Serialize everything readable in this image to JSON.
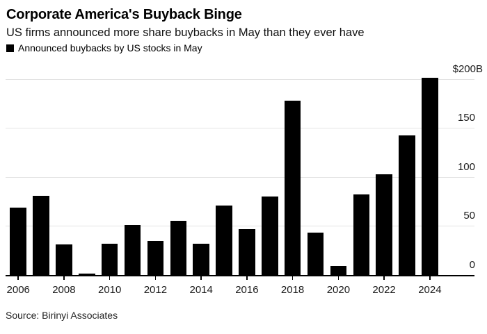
{
  "header": {
    "title": "Corporate America's Buyback Binge",
    "subtitle": "US firms announced more share buybacks in May than they ever have"
  },
  "legend": {
    "label": "Announced buybacks by US stocks in May",
    "swatch_color": "#000000"
  },
  "source": {
    "text": "Source: Birinyi Associates"
  },
  "chart_data": {
    "type": "bar",
    "title": "Announced buybacks by US stocks in May",
    "unit": "billions of US dollars",
    "categories": [
      2006,
      2007,
      2008,
      2009,
      2010,
      2011,
      2012,
      2013,
      2014,
      2015,
      2016,
      2017,
      2018,
      2019,
      2020,
      2021,
      2022,
      2023,
      2024
    ],
    "values": [
      69,
      81,
      31,
      1.5,
      32,
      51,
      35,
      55,
      32,
      71,
      47,
      80,
      178,
      43,
      9,
      82,
      103,
      142,
      201
    ],
    "xlabel": "",
    "ylabel": "",
    "ylim": [
      0,
      210
    ],
    "yticks": [
      {
        "value": 0,
        "label": "0"
      },
      {
        "value": 50,
        "label": "50"
      },
      {
        "value": 100,
        "label": "100"
      },
      {
        "value": 150,
        "label": "150"
      },
      {
        "value": 200,
        "label": "$200B"
      }
    ],
    "xtick_labels": [
      "2006",
      "2008",
      "2010",
      "2012",
      "2014",
      "2016",
      "2018",
      "2020",
      "2022",
      "2024"
    ],
    "bar_color": "#000000",
    "gridline_color": "#e3e3e3",
    "axis_color": "#000000",
    "grid": true,
    "legend_position": "top-left",
    "y_axis_side": "right"
  }
}
